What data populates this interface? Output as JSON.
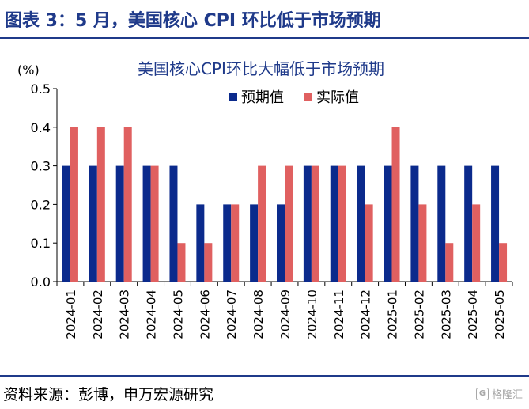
{
  "figure": {
    "title": "图表 3：5 月，美国核心 CPI 环比低于市场预期",
    "source": "资料来源：彭博，申万宏源研究",
    "watermark": "格隆汇",
    "watermark_icon": "G"
  },
  "chart_data": {
    "type": "bar",
    "title": "美国核心CPI环比大幅低于市场预期",
    "unit_label": "(%)",
    "xlabel": "",
    "ylabel": "",
    "ylim": [
      0,
      0.5
    ],
    "yticks": [
      "0.0",
      "0.1",
      "0.2",
      "0.3",
      "0.4",
      "0.5"
    ],
    "grid": false,
    "legend_position": "top-right",
    "categories": [
      "2024-01",
      "2024-02",
      "2024-03",
      "2024-04",
      "2024-05",
      "2024-06",
      "2024-07",
      "2024-08",
      "2024-09",
      "2024-10",
      "2024-11",
      "2024-12",
      "2025-01",
      "2025-02",
      "2025-03",
      "2025-04",
      "2025-05"
    ],
    "series": [
      {
        "name": "预期值",
        "color": "#0b2a8c",
        "values": [
          0.3,
          0.3,
          0.3,
          0.3,
          0.3,
          0.2,
          0.2,
          0.2,
          0.2,
          0.3,
          0.3,
          0.3,
          0.3,
          0.3,
          0.3,
          0.3,
          0.3
        ]
      },
      {
        "name": "实际值",
        "color": "#e06060",
        "values": [
          0.4,
          0.4,
          0.4,
          0.3,
          0.1,
          0.1,
          0.2,
          0.3,
          0.3,
          0.3,
          0.3,
          0.2,
          0.4,
          0.2,
          0.1,
          0.2,
          0.1
        ]
      }
    ]
  }
}
